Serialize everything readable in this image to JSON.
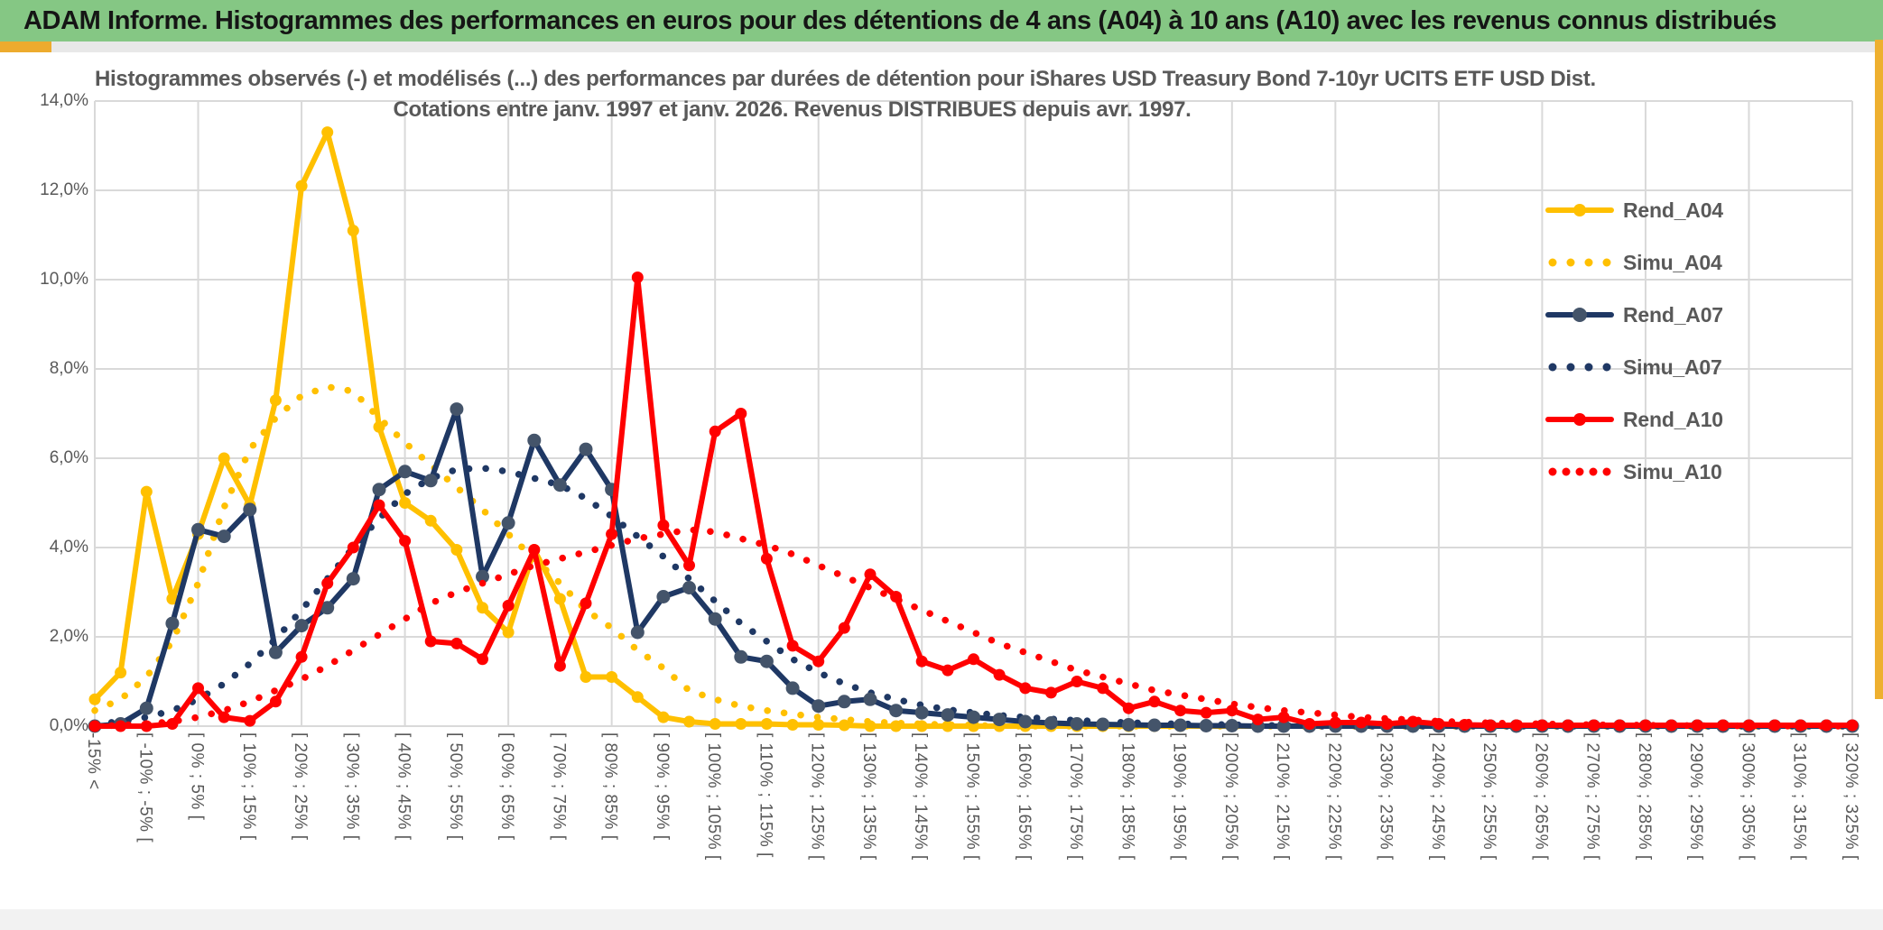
{
  "window": {
    "banner_title": "ADAM Informe. Histogrammes des performances en euros pour des détentions de 4 ans (A04) à 10 ans (A10) avec les revenus connus distribués"
  },
  "chart_data": {
    "type": "line",
    "title_line1": "Histogrammes observés (-) et modélisés (...) des performances par durées de détention pour iShares USD Treasury Bond 7-10yr UCITS ETF USD Dist.",
    "title_line2": "Cotations entre janv. 1997 et janv. 2026. Revenus DISTRIBUES depuis avr. 1997.",
    "ylabel": "",
    "xlabel": "",
    "ylim": [
      0,
      14
    ],
    "y_ticks": [
      "0,0%",
      "2,0%",
      "4,0%",
      "6,0%",
      "8,0%",
      "10,0%",
      "12,0%",
      "14,0%"
    ],
    "grid": true,
    "legend_position": "right-inside",
    "categories": [
      "-15% <",
      "",
      "[ -10% ; -5% [",
      "",
      "[ 0% ; 5% [",
      "",
      "[ 10% ; 15% [",
      "",
      "[ 20% ; 25% [",
      "",
      "[ 30% ; 35% [",
      "",
      "[ 40% ; 45% [",
      "",
      "[ 50% ; 55% [",
      "",
      "[ 60% ; 65% [",
      "",
      "[ 70% ; 75% [",
      "",
      "[ 80% ; 85% [",
      "",
      "[ 90% ; 95% [",
      "",
      "[ 100% ; 105% [",
      "",
      "[ 110% ; 115% [",
      "",
      "[ 120% ; 125% [",
      "",
      "[ 130% ; 135% [",
      "",
      "[ 140% ; 145% [",
      "",
      "[ 150% ; 155% [",
      "",
      "[ 160% ; 165% [",
      "",
      "[ 170% ; 175% [",
      "",
      "[ 180% ; 185% [",
      "",
      "[ 190% ; 195% [",
      "",
      "[ 200% ; 205% [",
      "",
      "[ 210% ; 215% [",
      "",
      "[ 220% ; 225% [",
      "",
      "[ 230% ; 235% [",
      "",
      "[ 240% ; 245% [",
      "",
      "[ 250% ; 255% [",
      "",
      "[ 260% ; 265% [",
      "",
      "[ 270% ; 275% [",
      "",
      "[ 280% ; 285% [",
      "",
      "[ 290% ; 295% [",
      "",
      "[ 300% ; 305% [",
      "",
      "[ 310% ; 315% [",
      "",
      "[ 320% ; 325% ["
    ],
    "series": [
      {
        "name": "Rend_A04",
        "style": "solid",
        "color": "#FFC000",
        "marker_color": "#FFC000",
        "marker_r": 6.5,
        "values": [
          0.6,
          1.2,
          5.25,
          2.85,
          4.3,
          6.0,
          4.95,
          7.3,
          12.1,
          13.3,
          11.1,
          6.7,
          5.0,
          4.6,
          3.95,
          2.65,
          2.1,
          3.95,
          2.85,
          1.1,
          1.1,
          0.65,
          0.2,
          0.1,
          0.05,
          0.05,
          0.05,
          0.03,
          0.03,
          0.02,
          0,
          0,
          0,
          0,
          0,
          0,
          0,
          0,
          0,
          0,
          0,
          0,
          0,
          0,
          0,
          0,
          0,
          0,
          0,
          0,
          0,
          0,
          0,
          0,
          0,
          0,
          0,
          0,
          0,
          0,
          0,
          0,
          0,
          0,
          0,
          0,
          0,
          0,
          0
        ]
      },
      {
        "name": "Simu_A04",
        "style": "dotted",
        "color": "#FFC000",
        "values": [
          0.35,
          0.6,
          1.1,
          1.9,
          3.2,
          4.9,
          6.2,
          6.9,
          7.4,
          7.6,
          7.5,
          6.9,
          6.35,
          5.85,
          5.35,
          4.85,
          4.3,
          3.75,
          3.2,
          2.6,
          2.2,
          1.7,
          1.3,
          0.8,
          0.6,
          0.45,
          0.35,
          0.27,
          0.2,
          0.15,
          0.1,
          0.07,
          0.05,
          0.03,
          0.02,
          0,
          0,
          0,
          0,
          0,
          0,
          0,
          0,
          0,
          0,
          0,
          0,
          0,
          0,
          0,
          0,
          0,
          0,
          0,
          0,
          0,
          0,
          0,
          0,
          0,
          0,
          0,
          0,
          0,
          0,
          0,
          0,
          0,
          0
        ]
      },
      {
        "name": "Rend_A07",
        "style": "solid",
        "color": "#1F3864",
        "marker_color": "#44546A",
        "marker_r": 7.5,
        "values": [
          0,
          0.05,
          0.4,
          2.3,
          4.4,
          4.25,
          4.85,
          1.65,
          2.25,
          2.65,
          3.3,
          5.3,
          5.7,
          5.5,
          7.1,
          3.35,
          4.55,
          6.4,
          5.4,
          6.2,
          5.3,
          2.1,
          2.9,
          3.1,
          2.4,
          1.55,
          1.45,
          0.85,
          0.45,
          0.55,
          0.6,
          0.35,
          0.3,
          0.25,
          0.2,
          0.15,
          0.1,
          0.07,
          0.05,
          0.04,
          0.03,
          0.02,
          0.02,
          0.01,
          0.01,
          0,
          0,
          0,
          0,
          0,
          0,
          0,
          0,
          0,
          0,
          0,
          0,
          0,
          0,
          0,
          0,
          0,
          0,
          0,
          0,
          0,
          0,
          0,
          0
        ]
      },
      {
        "name": "Simu_A07",
        "style": "dotted",
        "color": "#1F3864",
        "values": [
          0.05,
          0.1,
          0.2,
          0.35,
          0.6,
          0.95,
          1.4,
          1.95,
          2.6,
          3.3,
          4.0,
          4.65,
          5.2,
          5.55,
          5.75,
          5.78,
          5.7,
          5.55,
          5.4,
          5.1,
          4.7,
          4.25,
          3.8,
          3.3,
          2.8,
          2.3,
          1.9,
          1.5,
          1.2,
          0.95,
          0.75,
          0.6,
          0.47,
          0.37,
          0.3,
          0.24,
          0.2,
          0.16,
          0.13,
          0.1,
          0.08,
          0.06,
          0.05,
          0.04,
          0.03,
          0.02,
          0.01,
          0,
          0,
          0,
          0,
          0,
          0,
          0,
          0,
          0,
          0,
          0,
          0,
          0,
          0,
          0,
          0,
          0,
          0,
          0,
          0,
          0,
          0
        ]
      },
      {
        "name": "Rend_A10",
        "style": "solid",
        "color": "#FF0000",
        "marker_color": "#FF0000",
        "marker_r": 6.5,
        "values": [
          0,
          0,
          0,
          0.05,
          0.85,
          0.2,
          0.12,
          0.55,
          1.55,
          3.2,
          4.0,
          4.95,
          4.15,
          1.9,
          1.85,
          1.5,
          2.7,
          3.95,
          1.35,
          2.75,
          4.3,
          10.05,
          4.5,
          3.6,
          6.6,
          7.0,
          3.75,
          1.8,
          1.45,
          2.2,
          3.4,
          2.9,
          1.45,
          1.25,
          1.5,
          1.15,
          0.85,
          0.75,
          1.0,
          0.85,
          0.4,
          0.55,
          0.35,
          0.3,
          0.35,
          0.15,
          0.2,
          0.05,
          0.08,
          0.08,
          0.05,
          0.1,
          0.05,
          0.03,
          0.02,
          0.02,
          0.02,
          0.02,
          0.02,
          0.02,
          0.02,
          0.02,
          0.02,
          0.02,
          0.02,
          0.02,
          0.02,
          0.02,
          0.02
        ]
      },
      {
        "name": "Simu_A10",
        "style": "dotted",
        "color": "#FF0000",
        "values": [
          0,
          0.02,
          0.05,
          0.1,
          0.2,
          0.35,
          0.55,
          0.8,
          1.05,
          1.35,
          1.7,
          2.05,
          2.4,
          2.75,
          3.0,
          3.2,
          3.4,
          3.6,
          3.75,
          3.9,
          4.05,
          4.2,
          4.3,
          4.4,
          4.35,
          4.2,
          4.05,
          3.85,
          3.6,
          3.35,
          3.1,
          2.85,
          2.6,
          2.35,
          2.1,
          1.85,
          1.65,
          1.45,
          1.25,
          1.1,
          0.95,
          0.8,
          0.7,
          0.6,
          0.5,
          0.42,
          0.35,
          0.3,
          0.25,
          0.2,
          0.17,
          0.14,
          0.11,
          0.09,
          0.07,
          0.06,
          0.05,
          0.04,
          0.03,
          0.025,
          0.02,
          0.015,
          0.01,
          0.01,
          0.005,
          0.005,
          0,
          0,
          0
        ]
      }
    ]
  },
  "colors": {
    "banner_green": "#85C784",
    "gold_strip": "#EEB02F",
    "grid": "#D9D9D9",
    "axis_text": "#595959",
    "title_text": "#595959"
  }
}
